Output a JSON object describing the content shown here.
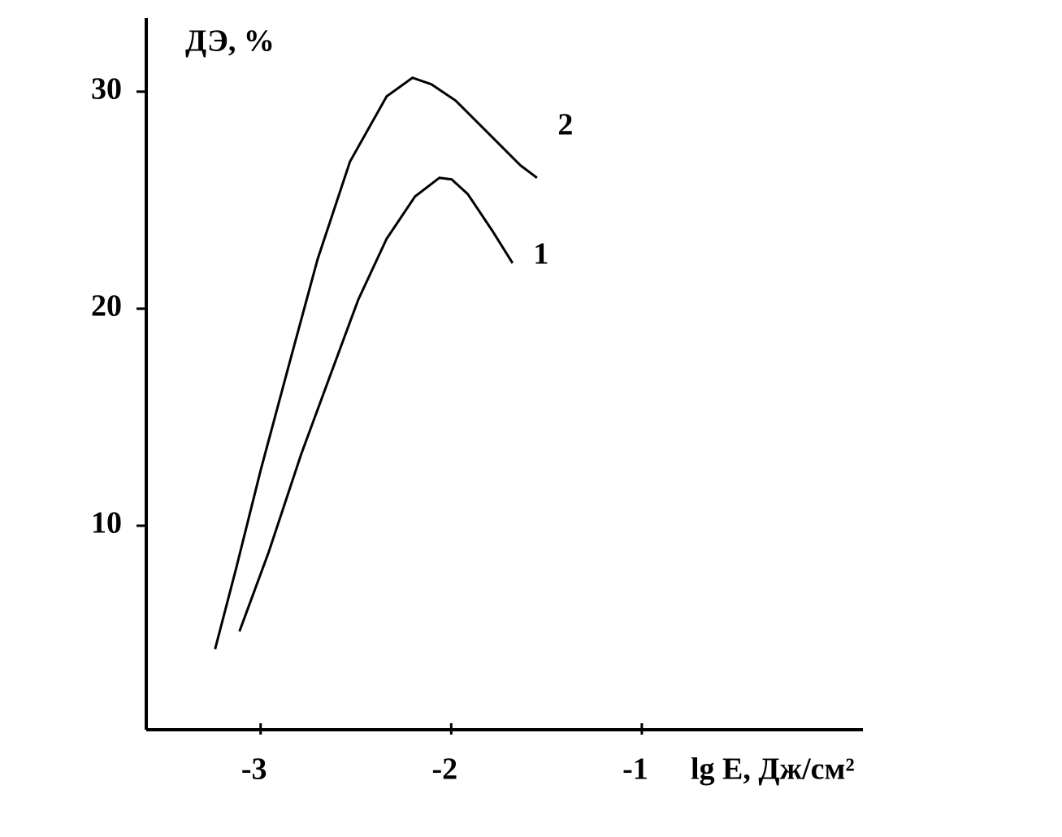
{
  "chart_data": {
    "type": "line",
    "ylabel": "ДЭ, %",
    "xlabel": "lg E, Дж/см²",
    "xlim": [
      -3.6,
      0.16
    ],
    "xticks": [
      -3,
      -2,
      -1
    ],
    "ylim": [
      0.6,
      33.4
    ],
    "yticks": [
      10,
      20,
      30
    ],
    "series": [
      {
        "name": "1",
        "color": "#000000",
        "x": [
          -3.111,
          -2.957,
          -2.787,
          -2.638,
          -2.488,
          -2.339,
          -2.19,
          -2.062,
          -1.998,
          -1.913,
          -1.785,
          -1.678
        ],
        "values": [
          5.13,
          8.8,
          13.3,
          16.85,
          20.41,
          23.22,
          25.17,
          26.03,
          25.96,
          25.28,
          23.6,
          22.1
        ]
      },
      {
        "name": "2",
        "color": "#000000",
        "x": [
          -3.239,
          -3.128,
          -3.0,
          -2.851,
          -2.701,
          -2.531,
          -2.339,
          -2.203,
          -2.104,
          -1.977,
          -1.806,
          -1.635,
          -1.55
        ],
        "values": [
          4.31,
          8.05,
          12.55,
          17.42,
          22.28,
          26.78,
          29.78,
          30.64,
          30.34,
          29.59,
          28.09,
          26.59,
          26.03
        ]
      }
    ]
  }
}
